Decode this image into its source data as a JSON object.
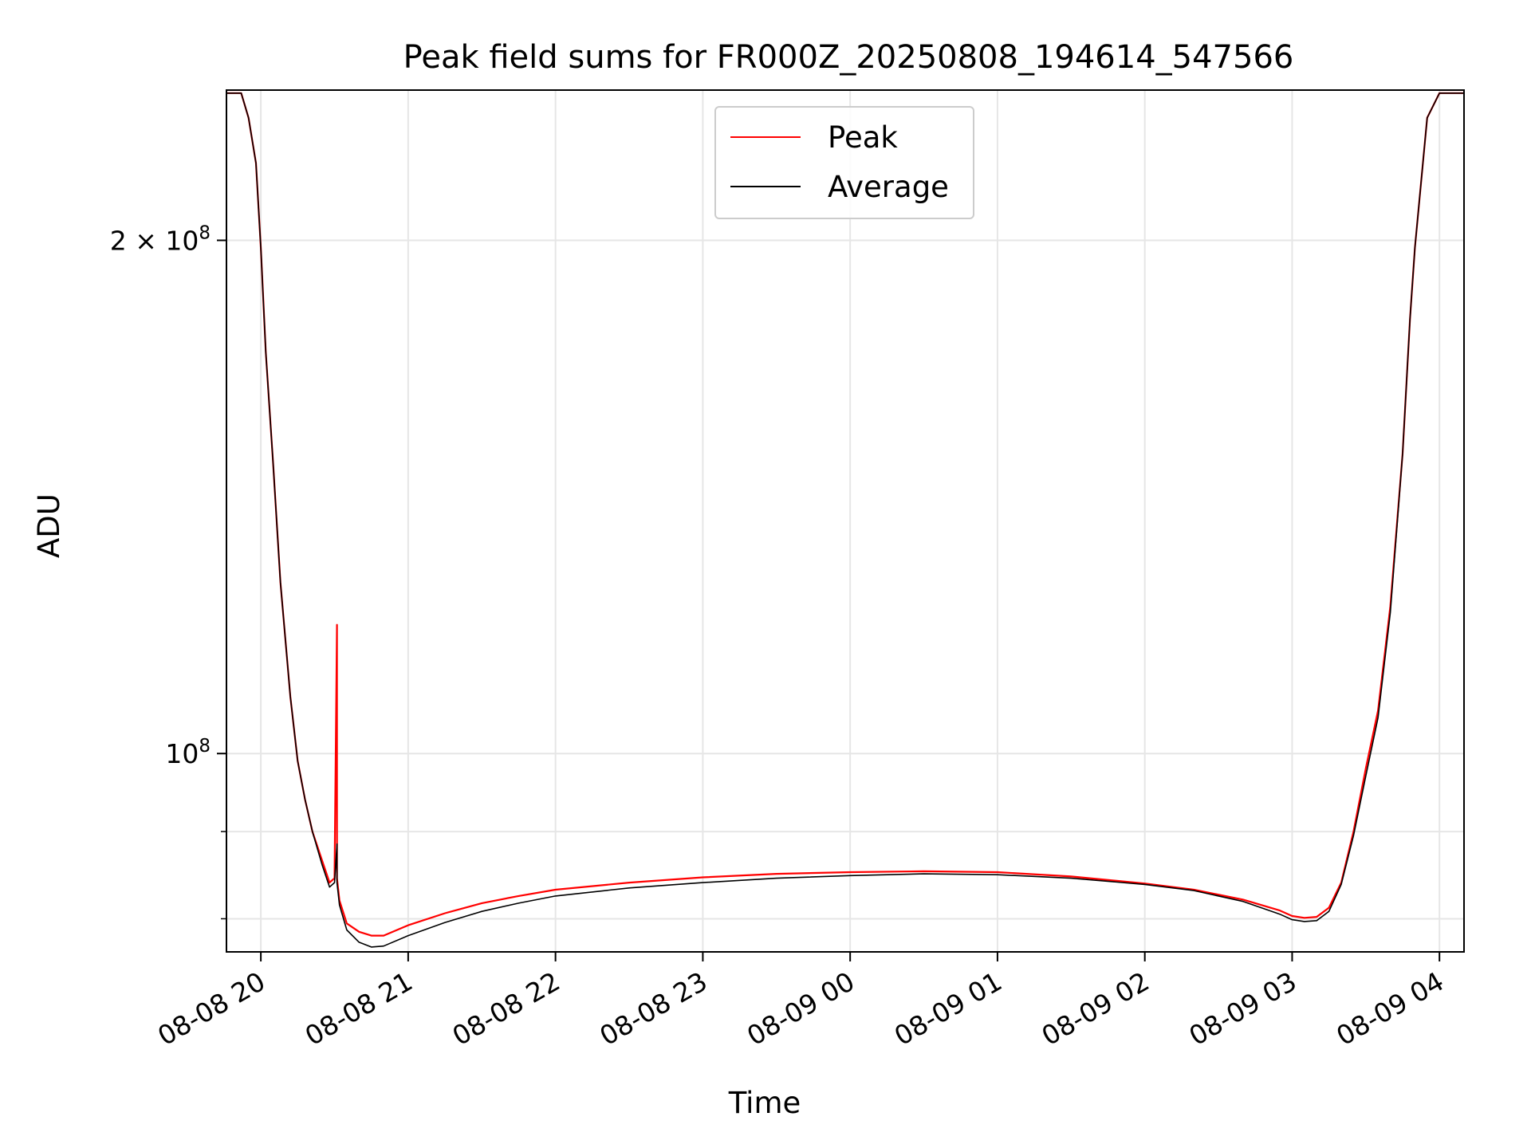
{
  "chart_data": {
    "type": "line",
    "title": "Peak field sums for FR000Z_20250808_194614_547566",
    "xlabel": "Time",
    "ylabel": "ADU",
    "y_scale": "log",
    "grid": true,
    "legend_position": "top-center",
    "xlim": [
      "2025-08-08 19:46",
      "2025-08-09 04:10"
    ],
    "ylim": [
      76500000,
      245000000
    ],
    "x_ticks": [
      "08-08 20",
      "08-08 21",
      "08-08 22",
      "08-08 23",
      "08-09 00",
      "08-09 01",
      "08-09 02",
      "08-09 03",
      "08-09 04"
    ],
    "x_tick_positions": [
      "2025-08-08 20:00",
      "2025-08-08 21:00",
      "2025-08-08 22:00",
      "2025-08-08 23:00",
      "2025-08-09 00:00",
      "2025-08-09 01:00",
      "2025-08-09 02:00",
      "2025-08-09 03:00",
      "2025-08-09 04:00"
    ],
    "y_ticks": [
      {
        "value": 100000000,
        "label_base": "10",
        "label_exp": "8",
        "label_prefix": ""
      },
      {
        "value": 200000000,
        "label_base": "10",
        "label_exp": "8",
        "label_prefix": "2 × "
      }
    ],
    "series": [
      {
        "name": "Peak",
        "color": "#ff0000",
        "x": [
          "2025-08-08 19:46",
          "2025-08-08 19:52",
          "2025-08-08 19:55",
          "2025-08-08 19:58",
          "2025-08-08 20:00",
          "2025-08-08 20:02",
          "2025-08-08 20:05",
          "2025-08-08 20:08",
          "2025-08-08 20:12",
          "2025-08-08 20:15",
          "2025-08-08 20:18",
          "2025-08-08 20:21",
          "2025-08-08 20:25",
          "2025-08-08 20:28",
          "2025-08-08 20:30",
          "2025-08-08 20:31",
          "2025-08-08 20:31",
          "2025-08-08 20:32",
          "2025-08-08 20:35",
          "2025-08-08 20:40",
          "2025-08-08 20:45",
          "2025-08-08 20:50",
          "2025-08-08 21:00",
          "2025-08-08 21:15",
          "2025-08-08 21:30",
          "2025-08-08 21:45",
          "2025-08-08 22:00",
          "2025-08-08 22:30",
          "2025-08-08 23:00",
          "2025-08-08 23:30",
          "2025-08-09 00:00",
          "2025-08-09 00:30",
          "2025-08-09 01:00",
          "2025-08-09 01:30",
          "2025-08-09 02:00",
          "2025-08-09 02:20",
          "2025-08-09 02:40",
          "2025-08-09 02:55",
          "2025-08-09 03:00",
          "2025-08-09 03:05",
          "2025-08-09 03:10",
          "2025-08-09 03:15",
          "2025-08-09 03:20",
          "2025-08-09 03:25",
          "2025-08-09 03:30",
          "2025-08-09 03:35",
          "2025-08-09 03:40",
          "2025-08-09 03:45",
          "2025-08-09 03:48",
          "2025-08-09 03:50",
          "2025-08-09 03:55",
          "2025-08-09 04:00",
          "2025-08-09 04:10"
        ],
        "y": [
          244000000,
          244000000,
          236000000,
          222000000,
          198000000,
          172000000,
          148000000,
          126000000,
          108000000,
          99000000,
          94000000,
          90000000,
          86500000,
          84000000,
          84500000,
          119000000,
          84500000,
          82000000,
          79500000,
          78600000,
          78200000,
          78200000,
          79300000,
          80600000,
          81700000,
          82500000,
          83200000,
          84000000,
          84600000,
          85000000,
          85200000,
          85300000,
          85200000,
          84700000,
          83900000,
          83200000,
          82100000,
          80900000,
          80300000,
          80100000,
          80200000,
          81200000,
          84000000,
          90000000,
          98000000,
          106000000,
          122000000,
          150000000,
          180000000,
          198000000,
          236000000,
          244000000,
          244000000
        ]
      },
      {
        "name": "Average",
        "color": "#000000",
        "x": [
          "2025-08-08 19:46",
          "2025-08-08 19:52",
          "2025-08-08 19:55",
          "2025-08-08 19:58",
          "2025-08-08 20:00",
          "2025-08-08 20:02",
          "2025-08-08 20:05",
          "2025-08-08 20:08",
          "2025-08-08 20:12",
          "2025-08-08 20:15",
          "2025-08-08 20:18",
          "2025-08-08 20:21",
          "2025-08-08 20:25",
          "2025-08-08 20:28",
          "2025-08-08 20:30",
          "2025-08-08 20:31",
          "2025-08-08 20:31",
          "2025-08-08 20:32",
          "2025-08-08 20:35",
          "2025-08-08 20:40",
          "2025-08-08 20:45",
          "2025-08-08 20:50",
          "2025-08-08 21:00",
          "2025-08-08 21:15",
          "2025-08-08 21:30",
          "2025-08-08 21:45",
          "2025-08-08 22:00",
          "2025-08-08 22:30",
          "2025-08-08 23:00",
          "2025-08-08 23:30",
          "2025-08-09 00:00",
          "2025-08-09 00:30",
          "2025-08-09 01:00",
          "2025-08-09 01:30",
          "2025-08-09 02:00",
          "2025-08-09 02:20",
          "2025-08-09 02:40",
          "2025-08-09 02:55",
          "2025-08-09 03:00",
          "2025-08-09 03:05",
          "2025-08-09 03:10",
          "2025-08-09 03:15",
          "2025-08-09 03:20",
          "2025-08-09 03:25",
          "2025-08-09 03:30",
          "2025-08-09 03:35",
          "2025-08-09 03:40",
          "2025-08-09 03:45",
          "2025-08-09 03:48",
          "2025-08-09 03:50",
          "2025-08-09 03:55",
          "2025-08-09 04:00",
          "2025-08-09 04:10"
        ],
        "y": [
          244000000,
          244000000,
          236000000,
          222000000,
          198000000,
          172000000,
          148000000,
          126000000,
          108000000,
          99000000,
          94000000,
          90000000,
          86000000,
          83500000,
          84000000,
          88500000,
          84000000,
          81500000,
          78800000,
          77500000,
          77000000,
          77100000,
          78200000,
          79600000,
          80800000,
          81700000,
          82500000,
          83400000,
          84000000,
          84500000,
          84800000,
          85000000,
          84900000,
          84500000,
          83800000,
          83100000,
          81900000,
          80500000,
          79900000,
          79700000,
          79800000,
          80800000,
          83800000,
          89500000,
          97000000,
          105000000,
          121000000,
          150000000,
          180000000,
          198000000,
          236000000,
          244000000,
          244000000
        ]
      }
    ]
  }
}
